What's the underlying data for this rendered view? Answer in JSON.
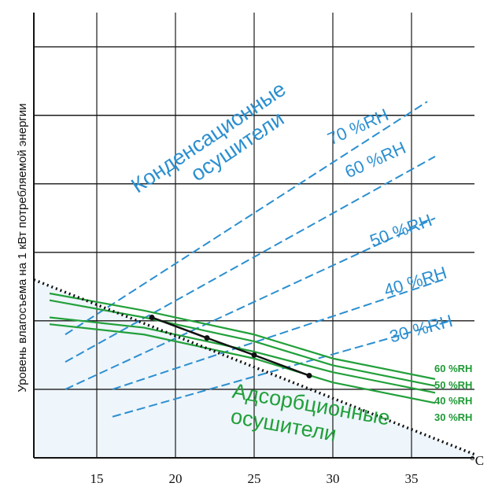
{
  "chart_data": {
    "type": "line",
    "title": "",
    "ylabel": "Уровень влагосъема на 1 кВт потребляемой энергии",
    "xunit": "°C",
    "x_ticks": [
      15,
      20,
      25,
      30,
      35
    ],
    "xlim": [
      11,
      39
    ],
    "ylim": [
      0,
      6.5
    ],
    "grid": true,
    "groups": {
      "condensation": {
        "label_line1": "Конденсационные",
        "label_line2": "осушители",
        "color": "#2b8fd0",
        "series": [
          {
            "name": "70 %RH",
            "x": [
              13,
              36
            ],
            "y": [
              1.8,
              5.2
            ]
          },
          {
            "name": "60 %RH",
            "x": [
              13,
              36.5
            ],
            "y": [
              1.4,
              4.4
            ]
          },
          {
            "name": "50 %RH",
            "x": [
              13,
              36.5
            ],
            "y": [
              1.0,
              3.5
            ]
          },
          {
            "name": "40 %RH",
            "x": [
              16,
              37
            ],
            "y": [
              1.0,
              2.6
            ]
          },
          {
            "name": "30 %RH",
            "x": [
              16,
              37.5
            ],
            "y": [
              0.6,
              2.0
            ]
          }
        ]
      },
      "adsorption": {
        "label_line1": "Адсорбционные",
        "label_line2": "осушители",
        "color": "#22a03a",
        "series": [
          {
            "name": "60 %RH",
            "x": [
              12,
              18,
              25,
              30,
              36.5
            ],
            "y": [
              2.4,
              2.15,
              1.8,
              1.45,
              1.15
            ]
          },
          {
            "name": "50 %RH",
            "x": [
              12,
              18,
              25,
              30,
              36.5
            ],
            "y": [
              2.3,
              2.05,
              1.7,
              1.35,
              1.05
            ]
          },
          {
            "name": "40 %RH",
            "x": [
              12,
              18,
              25,
              30,
              36.5
            ],
            "y": [
              2.05,
              1.9,
              1.55,
              1.25,
              0.95
            ]
          },
          {
            "name": "30 %RH",
            "x": [
              12,
              18,
              25,
              30,
              36.5
            ],
            "y": [
              1.95,
              1.8,
              1.45,
              1.1,
              0.8
            ]
          }
        ]
      }
    },
    "boundary": {
      "x": [
        11,
        39
      ],
      "y": [
        2.6,
        0.05
      ],
      "markers": [
        {
          "x": 18.5,
          "y": 2.05
        },
        {
          "x": 22,
          "y": 1.75
        },
        {
          "x": 25,
          "y": 1.5
        },
        {
          "x": 28.5,
          "y": 1.2
        }
      ]
    }
  }
}
